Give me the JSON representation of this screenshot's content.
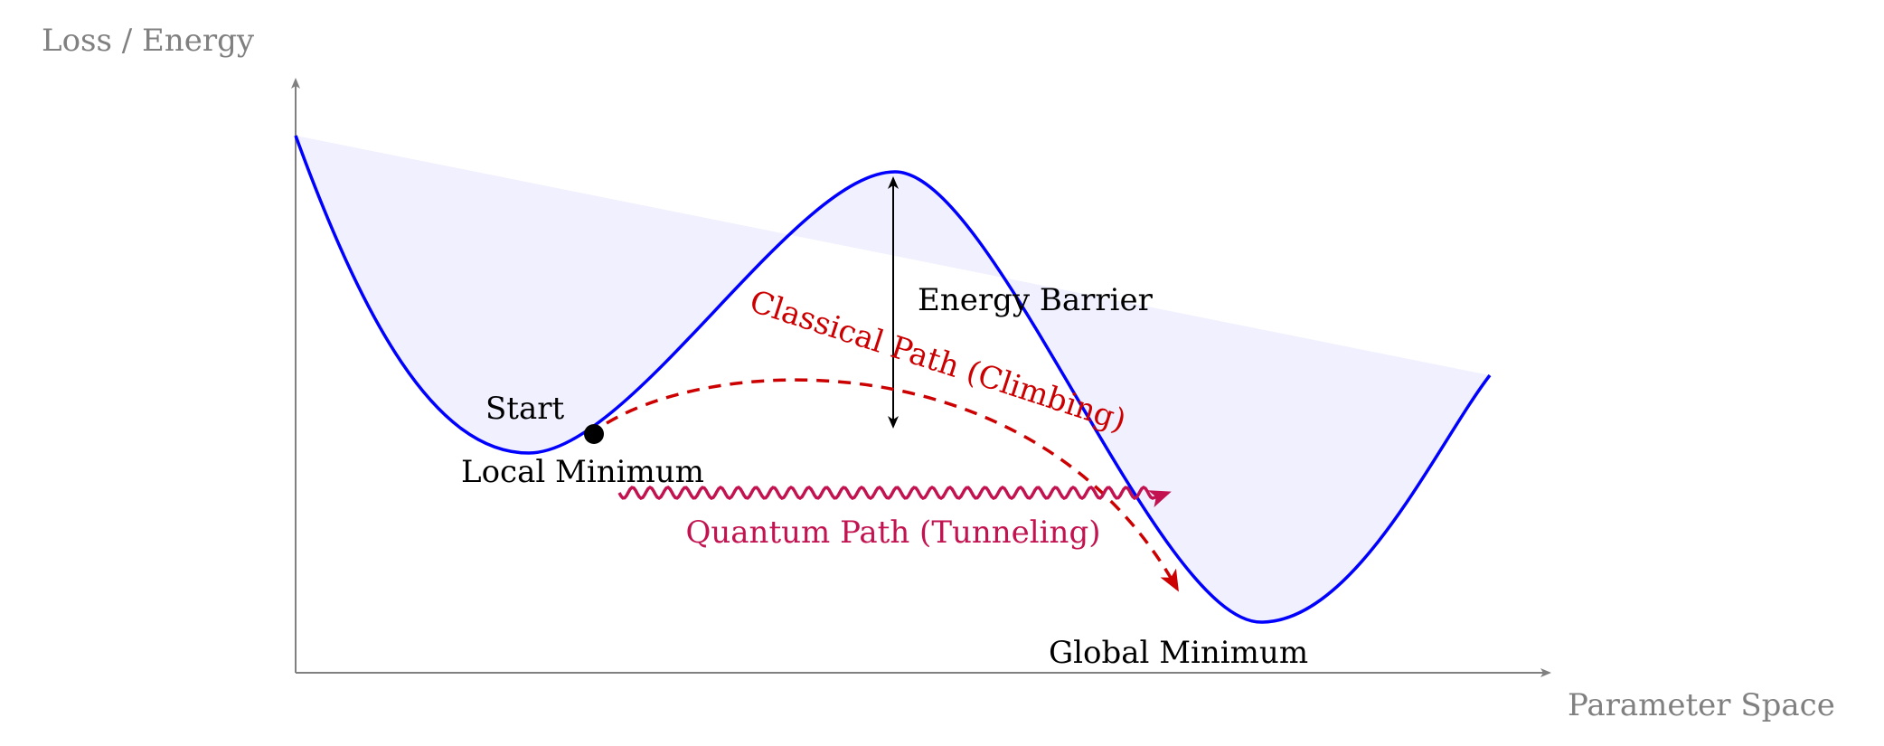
{
  "axes": {
    "y_label": "Loss / Energy",
    "x_label": "Parameter Space",
    "color": "#808080"
  },
  "annotations": {
    "start": "Start",
    "local_minimum": "Local Minimum",
    "energy_barrier": "Energy Barrier",
    "global_minimum": "Global Minimum",
    "classical_path": "Classical Path (Climbing)",
    "quantum_path": "Quantum Path (Tunneling)"
  },
  "colors": {
    "curve": "#0000ff",
    "fill": "#f0f0ff",
    "classical": "#cc0000",
    "quantum": "#c2124f",
    "barrier": "#000000"
  }
}
